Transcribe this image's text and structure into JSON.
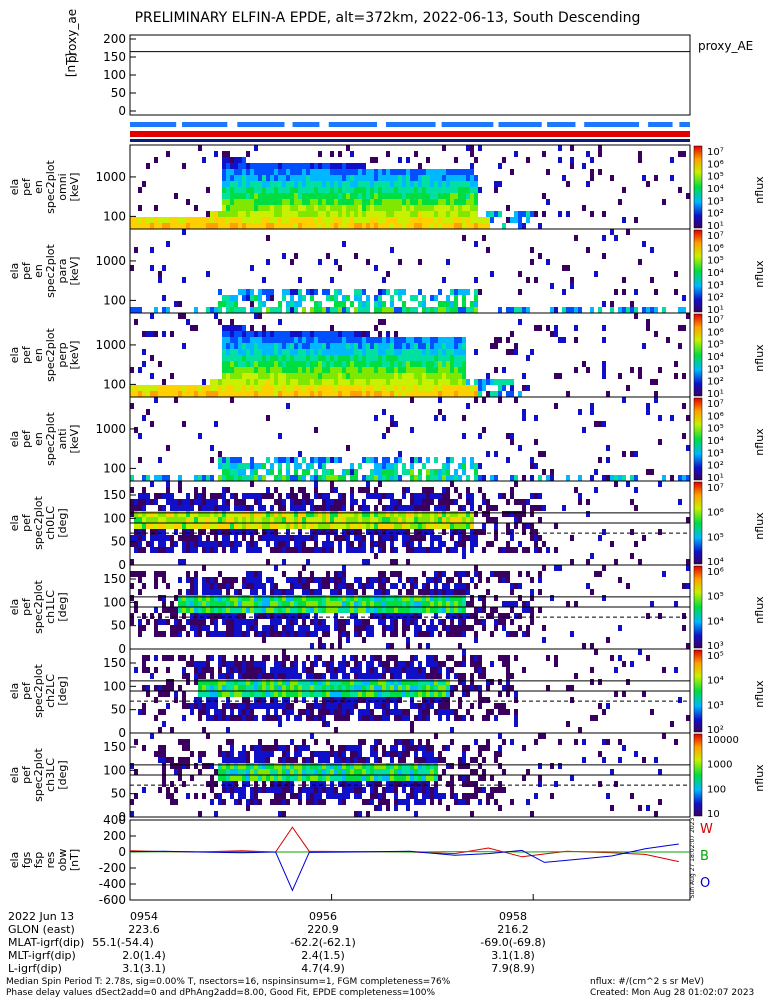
{
  "title": "PRELIMINARY ELFIN-A EPDE, alt=372km, 2022-06-13, South Descending",
  "proxy_panel": {
    "ylabel": [
      "proxy_ae",
      "[nT]"
    ],
    "yticks": [
      "200",
      "150",
      "100",
      "50",
      "0"
    ],
    "legend": "proxy_AE",
    "value": 165
  },
  "energy_panels": [
    {
      "ylabel": [
        "ela",
        "pef",
        "en",
        "spec2plot",
        "omni",
        "[keV]"
      ],
      "yticks": [
        "1000",
        "100"
      ]
    },
    {
      "ylabel": [
        "ela",
        "pef",
        "en",
        "spec2plot",
        "para",
        "[keV]"
      ],
      "yticks": [
        "1000",
        "100"
      ]
    },
    {
      "ylabel": [
        "ela",
        "pef",
        "en",
        "spec2plot",
        "perp",
        "[keV]"
      ],
      "yticks": [
        "1000",
        "100"
      ]
    },
    {
      "ylabel": [
        "ela",
        "pef",
        "en",
        "spec2plot",
        "anti",
        "[keV]"
      ],
      "yticks": [
        "1000",
        "100"
      ]
    }
  ],
  "pitch_panels": [
    {
      "ylabel": [
        "ela",
        "pef",
        "spec2plot",
        "ch0LC",
        "[deg]"
      ],
      "yticks": [
        "150",
        "100",
        "50",
        "0"
      ]
    },
    {
      "ylabel": [
        "ela",
        "pef",
        "spec2plot",
        "ch1LC",
        "[deg]"
      ],
      "yticks": [
        "150",
        "100",
        "50",
        "0"
      ]
    },
    {
      "ylabel": [
        "ela",
        "pef",
        "spec2plot",
        "ch2LC",
        "[deg]"
      ],
      "yticks": [
        "150",
        "100",
        "50",
        "0"
      ]
    },
    {
      "ylabel": [
        "ela",
        "pef",
        "spec2plot",
        "ch3LC",
        "[deg]"
      ],
      "yticks": [
        "150",
        "100",
        "50",
        "0"
      ]
    }
  ],
  "colorbars": [
    {
      "label": "nflux",
      "ticks": [
        "10⁷",
        "10⁶",
        "10⁵",
        "10⁴",
        "10³",
        "10²",
        "10¹"
      ]
    },
    {
      "label": "nflux",
      "ticks": [
        "10⁷",
        "10⁶",
        "10⁵",
        "10⁴",
        "10³",
        "10²",
        "10¹"
      ]
    },
    {
      "label": "nflux",
      "ticks": [
        "10⁷",
        "10⁶",
        "10⁵",
        "10⁴",
        "10³",
        "10²",
        "10¹"
      ]
    },
    {
      "label": "nflux",
      "ticks": [
        "10⁷",
        "10⁶",
        "10⁵",
        "10⁴",
        "10³",
        "10²",
        "10¹"
      ]
    },
    {
      "label": "nflux",
      "ticks": [
        "10⁷",
        "10⁶",
        "10⁵",
        "10⁴"
      ]
    },
    {
      "label": "nflux",
      "ticks": [
        "10⁶",
        "10⁵",
        "10⁴",
        "10³"
      ]
    },
    {
      "label": "nflux",
      "ticks": [
        "10⁵",
        "10⁴",
        "10³",
        "10²"
      ]
    },
    {
      "label": "nflux",
      "ticks": [
        "10000",
        "1000",
        "100",
        "10"
      ]
    }
  ],
  "bfield_panel": {
    "ylabel": [
      "ela",
      "fgs",
      "fsp",
      "res",
      "obw",
      "[nT]"
    ],
    "yticks": [
      "400",
      "200",
      "0",
      "-200",
      "-400",
      "-600"
    ],
    "legend": [
      "W",
      "B",
      "O"
    ],
    "legend_colors": [
      "#d40000",
      "#00aa00",
      "#0000d0"
    ],
    "stamp": "Sun Aug 27 18:02:07 2023"
  },
  "chart_data": {
    "type": "line",
    "title": "PRELIMINARY ELFIN-A EPDE, alt=372km, 2022-06-13, South Descending",
    "x": [
      "0954",
      "0956",
      "0958"
    ],
    "ylim": [
      -600,
      400
    ],
    "series": [
      {
        "name": "W",
        "color": "#d40000",
        "points": [
          [
            0,
            15
          ],
          [
            0.06,
            5
          ],
          [
            0.12,
            0
          ],
          [
            0.2,
            15
          ],
          [
            0.26,
            0
          ],
          [
            0.29,
            310
          ],
          [
            0.32,
            10
          ],
          [
            0.4,
            5
          ],
          [
            0.5,
            0
          ],
          [
            0.58,
            -20
          ],
          [
            0.64,
            50
          ],
          [
            0.7,
            -60
          ],
          [
            0.78,
            10
          ],
          [
            0.86,
            -10
          ],
          [
            0.92,
            -30
          ],
          [
            0.98,
            -120
          ]
        ]
      },
      {
        "name": "B",
        "color": "#00aa00",
        "points": [
          [
            0,
            0
          ],
          [
            0.1,
            5
          ],
          [
            0.2,
            0
          ],
          [
            0.3,
            0
          ],
          [
            0.4,
            5
          ],
          [
            0.5,
            0
          ],
          [
            0.6,
            5
          ],
          [
            0.7,
            0
          ],
          [
            0.8,
            5
          ],
          [
            0.9,
            0
          ],
          [
            1,
            0
          ]
        ]
      },
      {
        "name": "O",
        "color": "#0000d0",
        "points": [
          [
            0,
            5
          ],
          [
            0.06,
            10
          ],
          [
            0.12,
            0
          ],
          [
            0.2,
            -10
          ],
          [
            0.26,
            0
          ],
          [
            0.29,
            -480
          ],
          [
            0.32,
            -5
          ],
          [
            0.4,
            0
          ],
          [
            0.5,
            10
          ],
          [
            0.58,
            -40
          ],
          [
            0.64,
            -20
          ],
          [
            0.7,
            20
          ],
          [
            0.74,
            -130
          ],
          [
            0.8,
            -90
          ],
          [
            0.86,
            -50
          ],
          [
            0.92,
            40
          ],
          [
            0.98,
            100
          ]
        ]
      }
    ]
  },
  "bottom_rows": {
    "labels": [
      "2022 Jun 13",
      "GLON (east)",
      "MLAT-igrf(dip)",
      "MLT-igrf(dip)",
      "L-igrf(dip)"
    ],
    "col1": [
      "0954",
      "223.6",
      "55.1(-54.4)",
      "2.0(1.4)",
      "3.1(3.1)"
    ],
    "col2": [
      "0956",
      "220.9",
      "-62.2(-62.1)",
      "2.4(1.5)",
      "4.7(4.9)"
    ],
    "col3": [
      "0958",
      "216.2",
      "-69.0(-69.8)",
      "3.1(1.8)",
      "7.9(8.9)"
    ]
  },
  "footer": {
    "line1": "Median Spin Period T: 2.78s, sig=0.00% T, nsectors=16, nspinsinsum=1, FGM completeness=76%",
    "line2": "Phase delay values dSect2add=0 and dPhAng2add=8.00, Good Fit, EPDE completeness=100%",
    "units": "nflux: #/(cm^2 s sr MeV)",
    "created": "Created: Mon Aug 28 01:02:07 2023"
  }
}
